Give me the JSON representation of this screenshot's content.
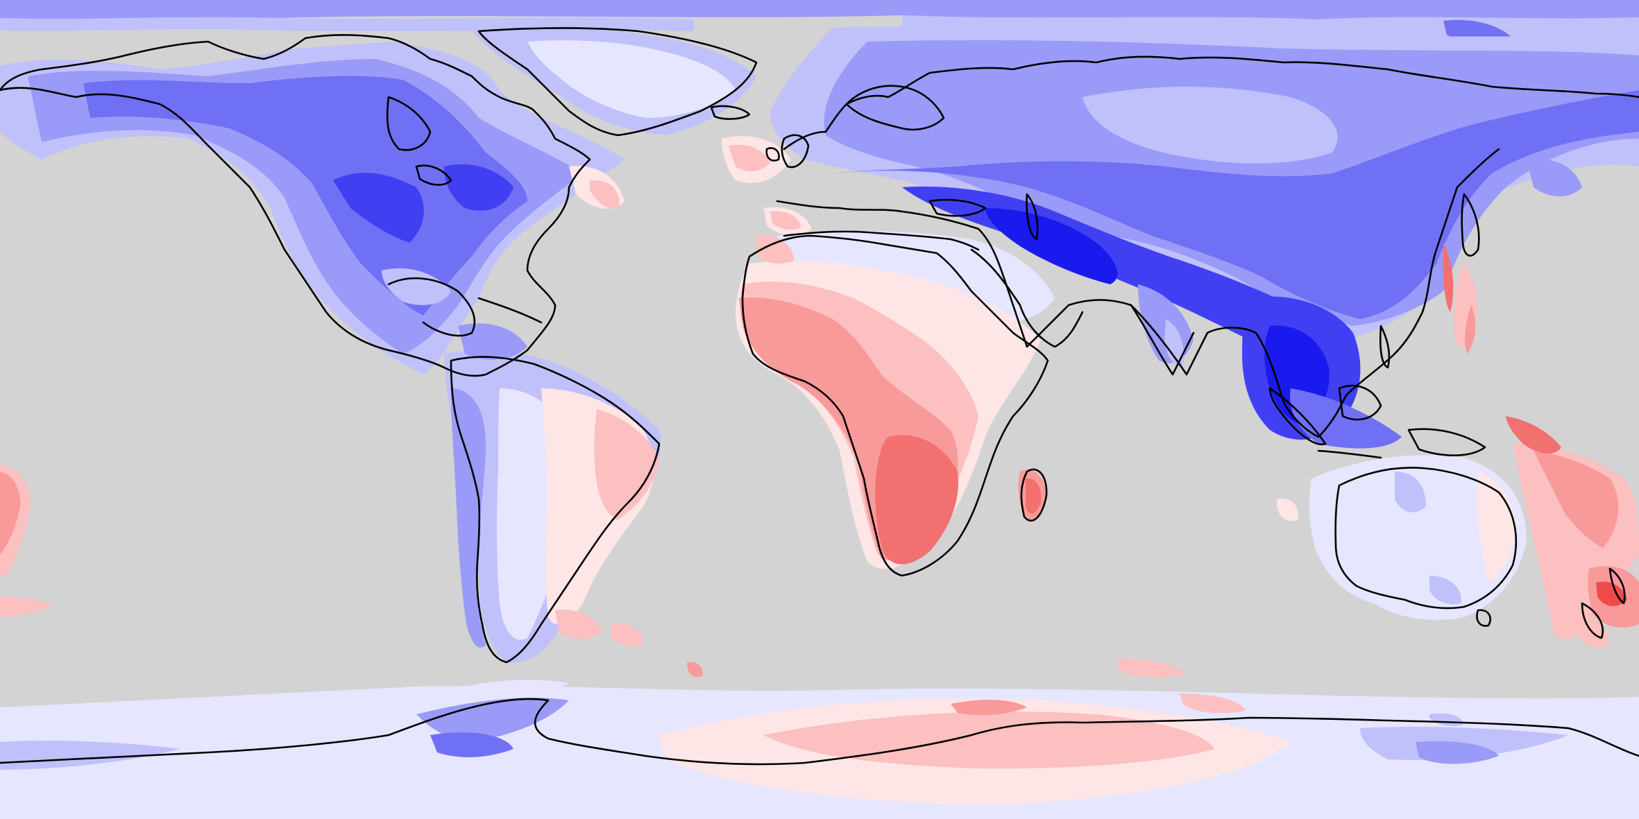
{
  "map": {
    "projection": "equirectangular",
    "extent": {
      "lon": [
        -180,
        180
      ],
      "lat": [
        -90,
        90
      ]
    },
    "ocean_color": "#d3d3d3",
    "coastline_color": "#000000",
    "palette": {
      "blue_5": "#1a1aee",
      "blue_4": "#4040f2",
      "blue_3": "#7070f5",
      "blue_2": "#9a9af8",
      "blue_1": "#c0c0fb",
      "blue_0": "#e6e6fe",
      "red_0": "#fee6e6",
      "red_1": "#fcc0c0",
      "red_2": "#f89a9a",
      "red_3": "#f27070",
      "red_4": "#ee4a4a"
    },
    "legend": null,
    "title": null
  }
}
